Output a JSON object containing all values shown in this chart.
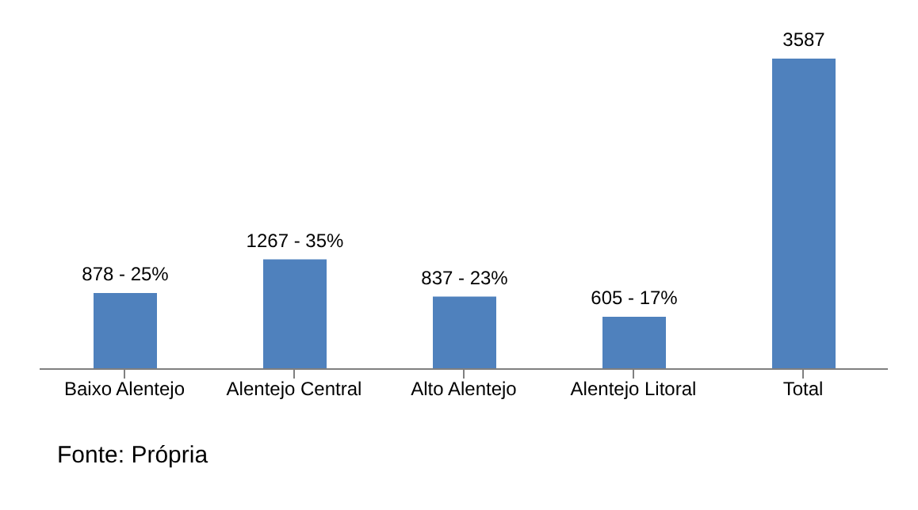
{
  "chart_data": {
    "type": "bar",
    "categories": [
      "Baixo Alentejo",
      "Alentejo Central",
      "Alto Alentejo",
      "Alentejo Litoral",
      "Total"
    ],
    "values": [
      878,
      1267,
      837,
      605,
      3587
    ],
    "value_labels": [
      "878 - 25%",
      "1267 - 35%",
      "837 - 23%",
      "605 - 17%",
      "3587"
    ],
    "color": "#4f81bd",
    "grid": false,
    "annotations": [
      "Fonte: Própria"
    ]
  }
}
